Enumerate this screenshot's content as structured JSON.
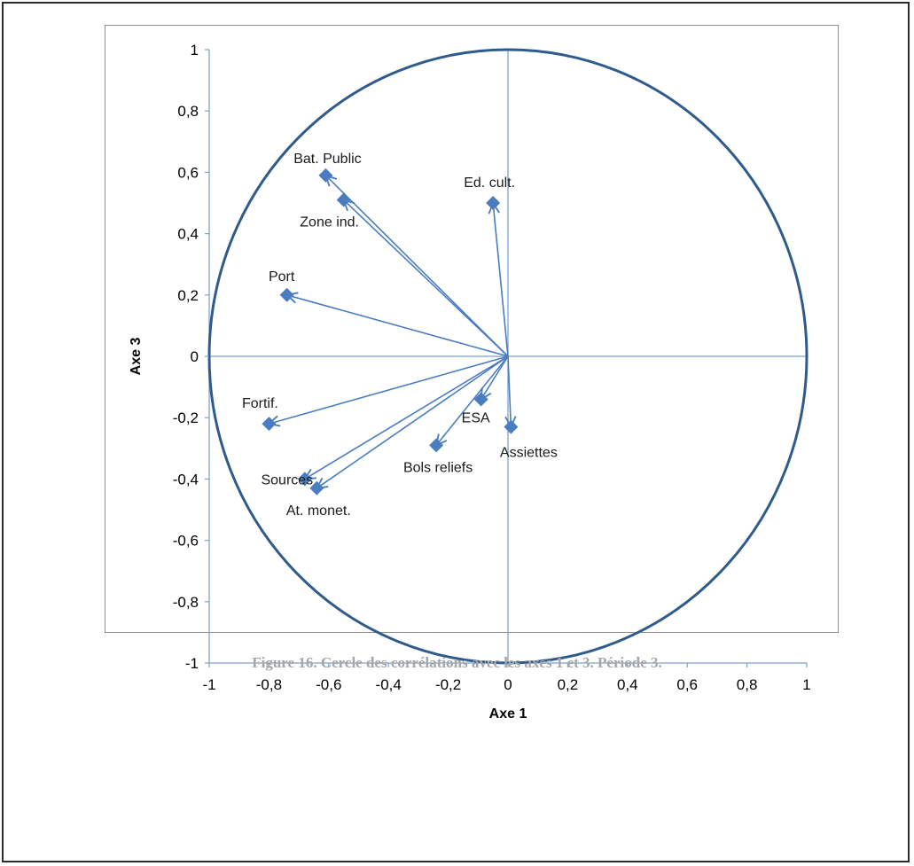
{
  "figure": {
    "caption": "Figure 16. Cercle des corrélations avec les axes 1 et 3. Période 3."
  },
  "colors": {
    "circle": "#2f5b8c",
    "axes": "#7aa3cf",
    "arrow": "#4a7dbf",
    "marker": "#4a7dbf"
  },
  "chart_data": {
    "type": "scatter",
    "title": "",
    "xlabel": "Axe 1",
    "ylabel": "Axe 3",
    "xlim": [
      -1,
      1
    ],
    "ylim": [
      -1,
      1
    ],
    "xticks": [
      "-1",
      "-0,8",
      "-0,6",
      "-0,4",
      "-0,2",
      "0",
      "0,2",
      "0,4",
      "0,6",
      "0,8",
      "1"
    ],
    "yticks": [
      "1",
      "0,8",
      "0,6",
      "0,4",
      "0,2",
      "0",
      "-0,2",
      "-0,4",
      "-0,6",
      "-0,8",
      "-1"
    ],
    "grid": false,
    "unit_circle": true,
    "points": [
      {
        "name": "Bat. Public",
        "x": -0.61,
        "y": 0.59
      },
      {
        "name": "Zone ind.",
        "x": -0.55,
        "y": 0.51
      },
      {
        "name": "Ed. cult.",
        "x": -0.05,
        "y": 0.5
      },
      {
        "name": "Port",
        "x": -0.74,
        "y": 0.2
      },
      {
        "name": "Fortif.",
        "x": -0.8,
        "y": -0.22
      },
      {
        "name": "Sources",
        "x": -0.68,
        "y": -0.4
      },
      {
        "name": "At. monet.",
        "x": -0.64,
        "y": -0.43
      },
      {
        "name": "Bols reliefs",
        "x": -0.24,
        "y": -0.29
      },
      {
        "name": "ESA",
        "x": -0.09,
        "y": -0.14
      },
      {
        "name": "Assiettes",
        "x": 0.01,
        "y": -0.23
      }
    ]
  }
}
